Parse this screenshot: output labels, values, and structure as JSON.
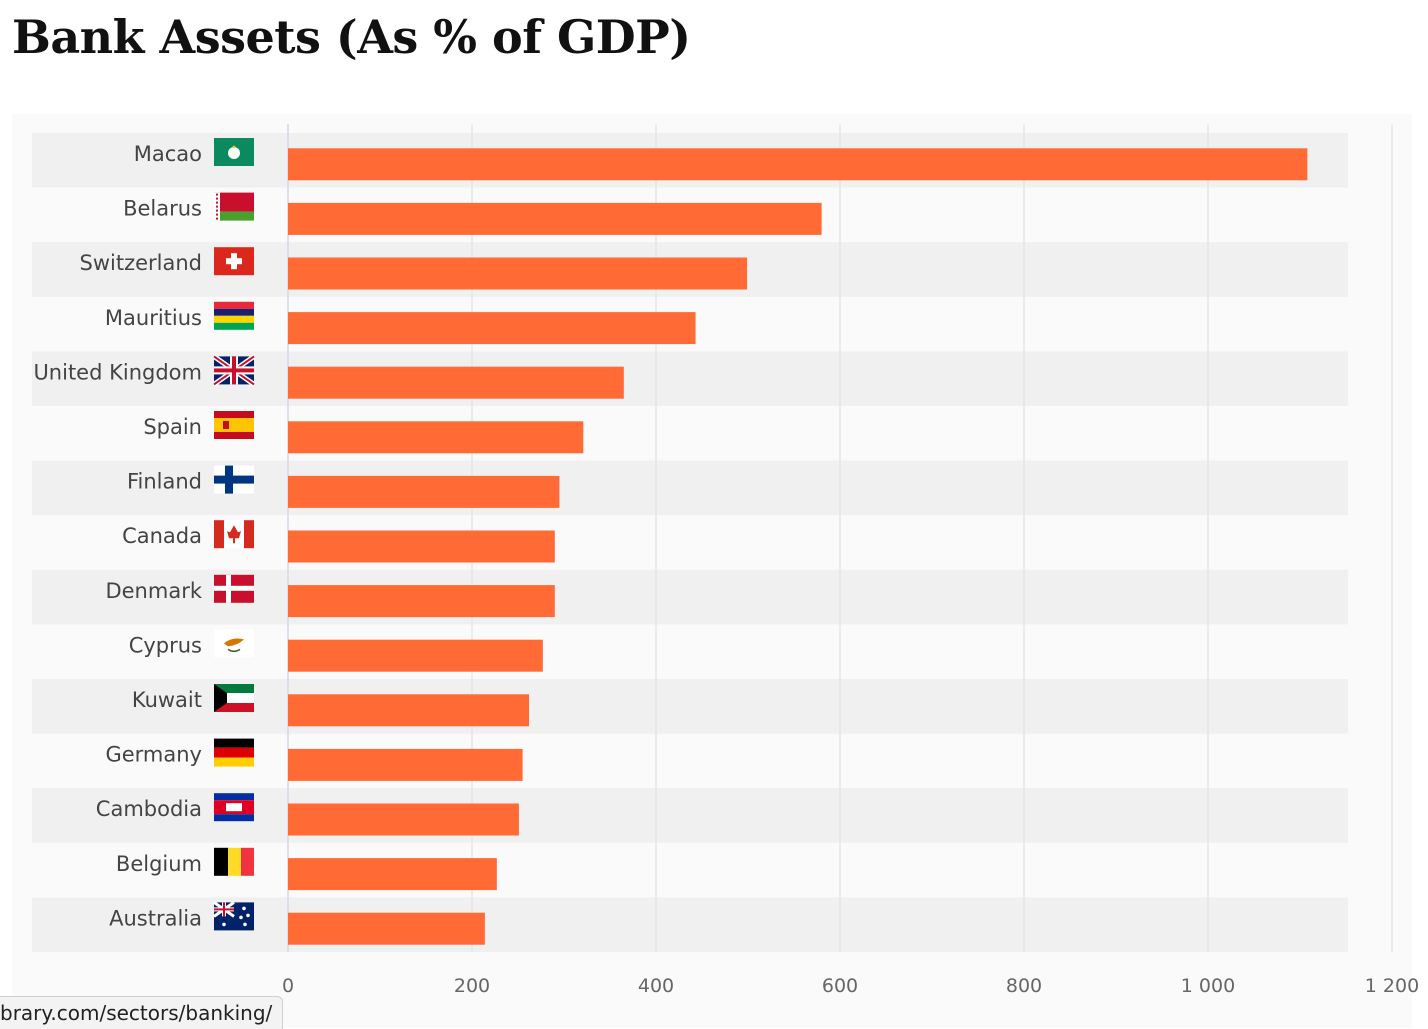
{
  "page": {
    "title": "Bank Assets (As % of GDP)"
  },
  "status_bar": {
    "url": "brary.com/sectors/banking/"
  },
  "colors": {
    "bar": "#ff6a35",
    "stripe": "#f0f0f0",
    "gridline": "#e6e6e6",
    "axis": "#cfd8e8"
  },
  "chart_data": {
    "type": "bar",
    "orientation": "horizontal",
    "categories": [
      "Macao",
      "Belarus",
      "Switzerland",
      "Mauritius",
      "United Kingdom",
      "Spain",
      "Finland",
      "Canada",
      "Denmark",
      "Cyprus",
      "Kuwait",
      "Germany",
      "Cambodia",
      "Belgium",
      "Australia"
    ],
    "flags": [
      "flag-macao-icon",
      "flag-belarus-icon",
      "flag-switzerland-icon",
      "flag-mauritius-icon",
      "flag-united-kingdom-icon",
      "flag-spain-icon",
      "flag-finland-icon",
      "flag-canada-icon",
      "flag-denmark-icon",
      "flag-cyprus-icon",
      "flag-kuwait-icon",
      "flag-germany-icon",
      "flag-cambodia-icon",
      "flag-belgium-icon",
      "flag-australia-icon"
    ],
    "values": [
      1108,
      580,
      499,
      443,
      365,
      321,
      295,
      290,
      290,
      277,
      262,
      255,
      251,
      227,
      214
    ],
    "xlim": [
      0,
      1200
    ],
    "xticks": [
      0,
      200,
      400,
      600,
      800,
      1000,
      1200
    ],
    "xtick_labels": [
      "0",
      "200",
      "400",
      "600",
      "800",
      "1 000",
      "1 200"
    ],
    "grid": true
  }
}
